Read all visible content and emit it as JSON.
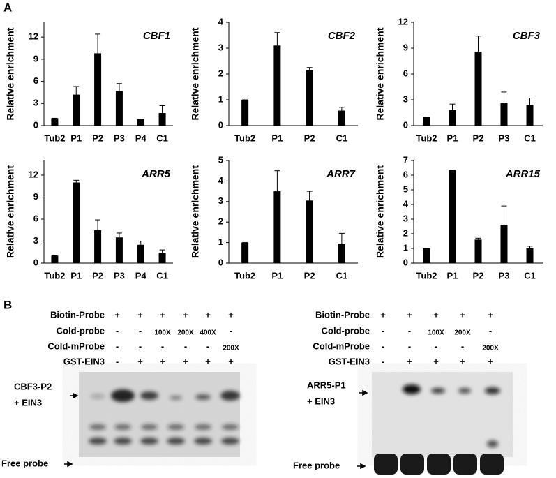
{
  "panel_labels": [
    "A",
    "B"
  ],
  "chart_data": [
    {
      "type": "bar",
      "title": "CBF1",
      "y_label": "Relative enrichment",
      "categories": [
        "Tub2",
        "P1",
        "P2",
        "P3",
        "P4",
        "C1"
      ],
      "values": [
        1.0,
        4.2,
        9.8,
        4.7,
        0.9,
        1.7
      ],
      "errors": [
        0,
        1.1,
        2.6,
        1.0,
        0,
        1.0
      ],
      "color": "#000000",
      "ylim": [
        0,
        14
      ],
      "yticks": [
        0,
        3,
        6,
        9,
        12
      ]
    },
    {
      "type": "bar",
      "title": "CBF2",
      "y_label": "Relative enrichment",
      "categories": [
        "Tub2",
        "P1",
        "P2",
        "C1"
      ],
      "values": [
        1.0,
        3.1,
        2.15,
        0.58
      ],
      "errors": [
        0,
        0.5,
        0.1,
        0.13
      ],
      "color": "#000000",
      "ylim": [
        0,
        4
      ],
      "yticks": [
        0,
        1,
        2,
        3,
        4
      ]
    },
    {
      "type": "bar",
      "title": "CBF3",
      "y_label": "Relative enrichment",
      "categories": [
        "Tub2",
        "P1",
        "P2",
        "P3",
        "C1"
      ],
      "values": [
        1.0,
        1.8,
        8.6,
        2.6,
        2.4
      ],
      "errors": [
        0,
        0.7,
        1.8,
        1.3,
        0.8
      ],
      "color": "#000000",
      "ylim": [
        0,
        12
      ],
      "yticks": [
        0,
        3,
        6,
        9,
        12
      ]
    },
    {
      "type": "bar",
      "title": "ARR5",
      "y_label": "Relative enrichment",
      "categories": [
        "Tub2",
        "P1",
        "P2",
        "P3",
        "P4",
        "C1"
      ],
      "values": [
        1.0,
        11.0,
        4.5,
        3.5,
        2.5,
        1.4
      ],
      "errors": [
        0,
        0.3,
        1.4,
        0.6,
        0.5,
        0.4
      ],
      "color": "#000000",
      "ylim": [
        0,
        14
      ],
      "yticks": [
        0,
        3,
        6,
        9,
        12
      ]
    },
    {
      "type": "bar",
      "title": "ARR7",
      "y_label": "Relative enrichment",
      "categories": [
        "Tub2",
        "P1",
        "P2",
        "C1"
      ],
      "values": [
        1.0,
        3.5,
        3.05,
        0.95
      ],
      "errors": [
        0,
        1.0,
        0.45,
        0.5
      ],
      "color": "#000000",
      "ylim": [
        0,
        5
      ],
      "yticks": [
        0,
        1,
        2,
        3,
        4,
        5
      ]
    },
    {
      "type": "bar",
      "title": "ARR15",
      "y_label": "Relative enrichment",
      "categories": [
        "Tub2",
        "P1",
        "P2",
        "P3",
        "C1"
      ],
      "values": [
        1.0,
        6.35,
        1.6,
        2.6,
        1.0
      ],
      "errors": [
        0,
        0,
        0.1,
        1.3,
        0.15
      ],
      "color": "#000000",
      "ylim": [
        0,
        7
      ],
      "yticks": [
        0,
        1,
        2,
        3,
        4,
        5,
        6,
        7
      ]
    }
  ],
  "gels": [
    {
      "rows": [
        {
          "label": "Biotin-Probe",
          "cells": [
            "+",
            "+",
            "+",
            "+",
            "+",
            "+"
          ]
        },
        {
          "label": "Cold-probe",
          "cells": [
            "-",
            "-",
            "100X",
            "200X",
            "400X",
            "-"
          ]
        },
        {
          "label": "Cold-mProbe",
          "cells": [
            "-",
            "-",
            "-",
            "-",
            "-",
            "200X"
          ]
        },
        {
          "label": "GST-EIN3",
          "cells": [
            "-",
            "+",
            "+",
            "+",
            "+",
            "+"
          ]
        }
      ],
      "band_label": [
        "CBF3-P2",
        "+ EIN3"
      ],
      "free_label": "Free probe"
    },
    {
      "rows": [
        {
          "label": "Biotin-Probe",
          "cells": [
            "+",
            "+",
            "+",
            "+",
            "+"
          ]
        },
        {
          "label": "Cold-probe",
          "cells": [
            "-",
            "-",
            "100X",
            "200X",
            "-"
          ]
        },
        {
          "label": "Cold-mProbe",
          "cells": [
            "-",
            "-",
            "-",
            "-",
            "200X"
          ]
        },
        {
          "label": "GST-EIN3",
          "cells": [
            "-",
            "+",
            "+",
            "+",
            "+"
          ]
        }
      ],
      "band_label": [
        "ARR5-P1",
        "+ EIN3"
      ],
      "free_label": "Free probe"
    }
  ]
}
